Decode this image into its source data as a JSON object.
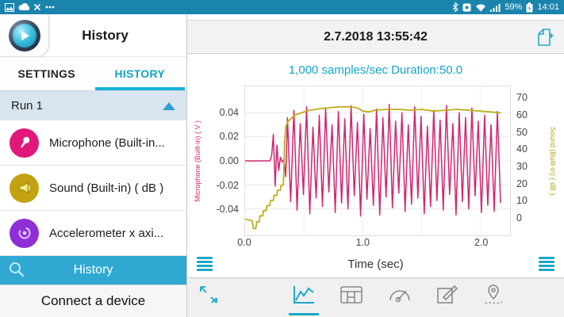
{
  "colors": {
    "accent_teal": "#14a5c4",
    "status_bar": "#1b84ad",
    "history_bar": "#2fa9d2",
    "mic_pink": "#d2266f",
    "sound_yellow": "#c0ad18",
    "accel_purple": "#8e2fd8"
  },
  "status_bar": {
    "time": "14:01",
    "battery_percent": "59%",
    "left_icons": [
      "screenshot-icon",
      "cloud-icon",
      "disconnect-icon",
      "more-notifications-icon"
    ],
    "right_icons": [
      "bluetooth-icon",
      "app-square-icon",
      "wifi-icon",
      "signal-icon",
      "battery-icon"
    ]
  },
  "sidebar": {
    "title": "History",
    "tabs": [
      {
        "label": "SETTINGS",
        "active": false
      },
      {
        "label": "HISTORY",
        "active": true
      }
    ],
    "run": {
      "label": "Run 1"
    },
    "sensors": [
      {
        "label": "Microphone (Built-in...",
        "icon": "microphone-icon",
        "color": "#e0187c"
      },
      {
        "label": "Sound (Built-in) ( dB )",
        "icon": "sound-icon",
        "color": "#c2a211"
      },
      {
        "label": "Accelerometer x axi...",
        "icon": "accelerometer-icon",
        "color": "#8e2fd8"
      }
    ],
    "history_button": {
      "label": "History"
    },
    "connect_button": {
      "label": "Connect a device"
    }
  },
  "main": {
    "date": "2.7.2018 13:55:42",
    "subtitle": "1,000 samples/sec Duration:50.0"
  },
  "toolbar": {
    "icons": [
      "expand-icon",
      "line-chart-icon",
      "table-icon",
      "gauge-icon",
      "edit-icon",
      "location-icon"
    ],
    "selected": "line-chart-icon"
  },
  "chart_data": {
    "type": "line",
    "xlabel": "Time (sec)",
    "xlim": [
      0,
      2.25
    ],
    "x_ticks": [
      "0.0",
      "1.0",
      "2.0"
    ],
    "x_grid": [
      0.5,
      1.0,
      1.5,
      2.0
    ],
    "grid": true,
    "legend": "none",
    "y_left": {
      "label": "Microphone (Built-in) ( V )",
      "color": "#d2266f",
      "lim": [
        -0.062,
        0.062
      ],
      "ticks": [
        "0.04",
        "0.02",
        "0.00",
        "-0.02",
        "-0.04"
      ]
    },
    "y_right": {
      "label": "Sound (Built-in) ( dB )",
      "color": "#b5a514",
      "lim": [
        -10.5,
        77
      ],
      "ticks": [
        "70",
        "60",
        "50",
        "40",
        "30",
        "20",
        "10",
        "0"
      ]
    },
    "series": [
      {
        "name": "Microphone (Built-in)",
        "axis": "left",
        "color": "#d2266f",
        "points": [
          [
            0,
            0
          ],
          [
            0.21,
            0
          ],
          [
            0.225,
            0.004
          ],
          [
            0.24,
            0.022
          ],
          [
            0.255,
            -0.021
          ],
          [
            0.27,
            0.013
          ],
          [
            0.285,
            -0.008
          ],
          [
            0.3,
            0.003
          ],
          [
            0.315,
            -0.001
          ],
          [
            0.33,
            0.001
          ],
          [
            0.345,
            -0.013
          ],
          [
            0.36,
            0.036
          ],
          [
            0.387,
            -0.034
          ],
          [
            0.414,
            0.042
          ],
          [
            0.441,
            -0.041
          ],
          [
            0.468,
            0.031
          ],
          [
            0.495,
            -0.028
          ],
          [
            0.522,
            0.045
          ],
          [
            0.549,
            -0.044
          ],
          [
            0.576,
            0.028
          ],
          [
            0.603,
            -0.031
          ],
          [
            0.63,
            0.038
          ],
          [
            0.657,
            -0.038
          ],
          [
            0.684,
            0.044
          ],
          [
            0.711,
            -0.026
          ],
          [
            0.738,
            0.03
          ],
          [
            0.765,
            -0.043
          ],
          [
            0.792,
            0.041
          ],
          [
            0.819,
            -0.035
          ],
          [
            0.846,
            0.035
          ],
          [
            0.873,
            -0.04
          ],
          [
            0.9,
            0.046
          ],
          [
            0.927,
            -0.029
          ],
          [
            0.954,
            0.032
          ],
          [
            0.981,
            -0.046
          ],
          [
            1.008,
            0.039
          ],
          [
            1.035,
            -0.032
          ],
          [
            1.062,
            0.027
          ],
          [
            1.089,
            -0.037
          ],
          [
            1.116,
            0.043
          ],
          [
            1.143,
            -0.045
          ],
          [
            1.17,
            0.036
          ],
          [
            1.197,
            -0.03
          ],
          [
            1.224,
            0.047
          ],
          [
            1.251,
            -0.039
          ],
          [
            1.278,
            0.033
          ],
          [
            1.305,
            -0.027
          ],
          [
            1.332,
            0.04
          ],
          [
            1.359,
            -0.042
          ],
          [
            1.386,
            0.03
          ],
          [
            1.413,
            -0.036
          ],
          [
            1.44,
            0.045
          ],
          [
            1.467,
            -0.031
          ],
          [
            1.494,
            0.037
          ],
          [
            1.521,
            -0.044
          ],
          [
            1.548,
            0.029
          ],
          [
            1.575,
            -0.038
          ],
          [
            1.602,
            0.042
          ],
          [
            1.629,
            -0.033
          ],
          [
            1.656,
            0.034
          ],
          [
            1.683,
            -0.041
          ],
          [
            1.71,
            0.046
          ],
          [
            1.737,
            -0.028
          ],
          [
            1.764,
            0.031
          ],
          [
            1.791,
            -0.045
          ],
          [
            1.818,
            0.04
          ],
          [
            1.845,
            -0.034
          ],
          [
            1.872,
            0.036
          ],
          [
            1.899,
            -0.04
          ],
          [
            1.926,
            0.044
          ],
          [
            1.953,
            -0.029
          ],
          [
            1.98,
            0.033
          ],
          [
            2.007,
            -0.043
          ],
          [
            2.034,
            0.038
          ],
          [
            2.061,
            -0.037
          ],
          [
            2.088,
            0.03
          ],
          [
            2.115,
            -0.042
          ],
          [
            2.142,
            0.041
          ],
          [
            2.169,
            -0.035
          ]
        ]
      },
      {
        "name": "Sound (Built-in)",
        "axis": "right",
        "color": "#c0ad18",
        "points": [
          [
            0,
            -1
          ],
          [
            0.04,
            -1.5
          ],
          [
            0.06,
            -2
          ],
          [
            0.07,
            -6.5
          ],
          [
            0.09,
            -6.5
          ],
          [
            0.1,
            -2.5
          ],
          [
            0.12,
            -2.5
          ],
          [
            0.125,
            1
          ],
          [
            0.15,
            1
          ],
          [
            0.155,
            4
          ],
          [
            0.18,
            4
          ],
          [
            0.185,
            7
          ],
          [
            0.21,
            7
          ],
          [
            0.215,
            10
          ],
          [
            0.24,
            10
          ],
          [
            0.245,
            13
          ],
          [
            0.27,
            13
          ],
          [
            0.275,
            16
          ],
          [
            0.3,
            16
          ],
          [
            0.305,
            19
          ],
          [
            0.325,
            19
          ],
          [
            0.33,
            30
          ],
          [
            0.335,
            44
          ],
          [
            0.345,
            53
          ],
          [
            0.36,
            56
          ],
          [
            0.39,
            58
          ],
          [
            0.42,
            60
          ],
          [
            0.46,
            61
          ],
          [
            0.5,
            62
          ],
          [
            0.55,
            63
          ],
          [
            0.6,
            63.5
          ],
          [
            0.65,
            64
          ],
          [
            0.72,
            64.5
          ],
          [
            0.8,
            65
          ],
          [
            0.88,
            65
          ],
          [
            0.95,
            64.5
          ],
          [
            1.0,
            62.5
          ],
          [
            1.05,
            62
          ],
          [
            1.1,
            63
          ],
          [
            1.2,
            63.5
          ],
          [
            1.3,
            63.5
          ],
          [
            1.4,
            63
          ],
          [
            1.5,
            63.5
          ],
          [
            1.6,
            62.5
          ],
          [
            1.7,
            63
          ],
          [
            1.8,
            63.5
          ],
          [
            1.9,
            63
          ],
          [
            2.0,
            62.5
          ],
          [
            2.08,
            62
          ],
          [
            2.17,
            61.5
          ]
        ]
      }
    ]
  }
}
